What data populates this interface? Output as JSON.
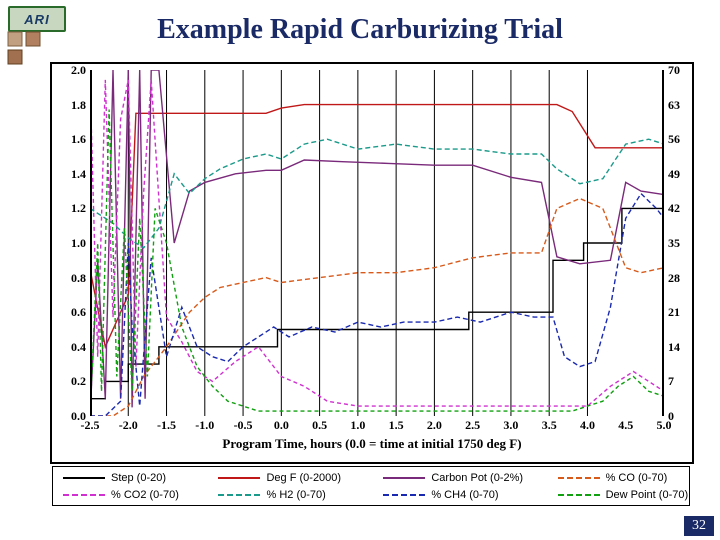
{
  "logo_text": "ARI",
  "title": "Example Rapid Carburizing Trial",
  "page_number": "32",
  "chart": {
    "type": "line",
    "xlabel": "Program Time, hours (0.0 = time at initial 1750 deg F)",
    "xlim": [
      -2.5,
      5.0
    ],
    "xtick_step": 0.5,
    "y_left_lim": [
      0.0,
      2.0
    ],
    "y_left_step": 0.2,
    "y_right_lim": [
      0,
      70
    ],
    "y_right_step": 7,
    "xticks": [
      "-2.5",
      "-2.0",
      "-1.5",
      "-1.0",
      "-0.5",
      "0.0",
      "0.5",
      "1.0",
      "1.5",
      "2.0",
      "2.5",
      "3.0",
      "3.5",
      "4.0",
      "4.5",
      "5.0"
    ],
    "yticks_left": [
      "0.0",
      "0.2",
      "0.4",
      "0.6",
      "0.8",
      "1.0",
      "1.2",
      "1.4",
      "1.6",
      "1.8",
      "2.0"
    ],
    "yticks_right": [
      "0",
      "7",
      "14",
      "21",
      "28",
      "35",
      "42",
      "49",
      "56",
      "63",
      "70"
    ],
    "grid_vertical_at": [
      -2.0,
      -1.5,
      -1.0,
      -0.5,
      0.0,
      0.5,
      1.0,
      1.5,
      2.0,
      2.5,
      3.0,
      3.5,
      4.0
    ],
    "background_color": "#ffffff",
    "axis_color": "#000000",
    "label_fontsize": 13,
    "tick_fontsize": 12,
    "line_width": 1.4,
    "legend": [
      {
        "label": "Step (0-20)",
        "color": "#000000",
        "dash": "solid"
      },
      {
        "label": "Deg F (0-2000)",
        "color": "#c01818",
        "dash": "solid"
      },
      {
        "label": "Carbon Pot (0-2%)",
        "color": "#7a2a7a",
        "dash": "solid"
      },
      {
        "label": "% CO (0-70)",
        "color": "#d85a1a",
        "dash": "dashed"
      },
      {
        "label": "% CO2 (0-70)",
        "color": "#d030d0",
        "dash": "dashed"
      },
      {
        "label": "% H2 (0-70)",
        "color": "#1a9a8a",
        "dash": "dashed"
      },
      {
        "label": "% CH4 (0-70)",
        "color": "#1a2ab0",
        "dash": "dashed"
      },
      {
        "label": "Dew Point (0-70)",
        "color": "#10a010",
        "dash": "dashed"
      }
    ],
    "series": {
      "step": {
        "color": "#000000",
        "dash": "none",
        "axis": "left",
        "pts": [
          [
            -2.5,
            0.1
          ],
          [
            -2.3,
            0.1
          ],
          [
            -2.3,
            0.2
          ],
          [
            -2.0,
            0.2
          ],
          [
            -2.0,
            0.3
          ],
          [
            -1.6,
            0.3
          ],
          [
            -1.6,
            0.4
          ],
          [
            -0.05,
            0.4
          ],
          [
            -0.05,
            0.5
          ],
          [
            2.45,
            0.5
          ],
          [
            2.45,
            0.6
          ],
          [
            3.55,
            0.6
          ],
          [
            3.55,
            0.9
          ],
          [
            3.95,
            0.9
          ],
          [
            3.95,
            1.0
          ],
          [
            4.45,
            1.0
          ],
          [
            4.45,
            1.2
          ],
          [
            5.0,
            1.2
          ]
        ]
      },
      "degf": {
        "color": "#c01818",
        "dash": "none",
        "axis": "left",
        "pts": [
          [
            -2.5,
            0.85
          ],
          [
            -2.3,
            0.4
          ],
          [
            -2.0,
            0.7
          ],
          [
            -1.9,
            1.75
          ],
          [
            -1.7,
            1.75
          ],
          [
            -1.6,
            1.75
          ],
          [
            -0.2,
            1.75
          ],
          [
            0.0,
            1.78
          ],
          [
            0.3,
            1.8
          ],
          [
            3.6,
            1.8
          ],
          [
            3.8,
            1.76
          ],
          [
            4.1,
            1.55
          ],
          [
            4.5,
            1.55
          ],
          [
            5.0,
            1.55
          ]
        ]
      },
      "carbon": {
        "color": "#7a2a7a",
        "dash": "none",
        "axis": "left",
        "pts": [
          [
            -2.5,
            0.0
          ],
          [
            -2.4,
            0.9
          ],
          [
            -2.3,
            0.1
          ],
          [
            -2.2,
            2.0
          ],
          [
            -2.1,
            0.1
          ],
          [
            -2.0,
            2.0
          ],
          [
            -1.95,
            0.05
          ],
          [
            -1.85,
            2.0
          ],
          [
            -1.78,
            0.1
          ],
          [
            -1.7,
            2.0
          ],
          [
            -1.6,
            2.0
          ],
          [
            -1.4,
            1.0
          ],
          [
            -1.2,
            1.3
          ],
          [
            -1.0,
            1.35
          ],
          [
            -0.6,
            1.4
          ],
          [
            -0.2,
            1.42
          ],
          [
            0.0,
            1.42
          ],
          [
            0.3,
            1.48
          ],
          [
            0.8,
            1.47
          ],
          [
            1.4,
            1.46
          ],
          [
            2.0,
            1.45
          ],
          [
            2.5,
            1.45
          ],
          [
            3.0,
            1.38
          ],
          [
            3.4,
            1.35
          ],
          [
            3.6,
            0.92
          ],
          [
            3.9,
            0.88
          ],
          [
            4.3,
            0.9
          ],
          [
            4.5,
            1.35
          ],
          [
            4.7,
            1.3
          ],
          [
            5.0,
            1.28
          ]
        ]
      },
      "co": {
        "color": "#d85a1a",
        "dash": "5,3",
        "axis": "right",
        "pts": [
          [
            -2.5,
            0
          ],
          [
            -2.2,
            0
          ],
          [
            -2.0,
            2
          ],
          [
            -1.8,
            8
          ],
          [
            -1.5,
            14
          ],
          [
            -1.2,
            21
          ],
          [
            -1.0,
            24
          ],
          [
            -0.8,
            26
          ],
          [
            -0.5,
            27
          ],
          [
            -0.2,
            28
          ],
          [
            0.0,
            27
          ],
          [
            0.5,
            28
          ],
          [
            1.0,
            29
          ],
          [
            1.5,
            29
          ],
          [
            2.0,
            30
          ],
          [
            2.5,
            32
          ],
          [
            3.0,
            33
          ],
          [
            3.4,
            33
          ],
          [
            3.6,
            42
          ],
          [
            3.9,
            44
          ],
          [
            4.2,
            42
          ],
          [
            4.5,
            30
          ],
          [
            4.7,
            29
          ],
          [
            5.0,
            30
          ]
        ]
      },
      "co2": {
        "color": "#d030d0",
        "dash": "4,3",
        "axis": "right",
        "pts": [
          [
            -2.5,
            68
          ],
          [
            -2.4,
            12
          ],
          [
            -2.3,
            68
          ],
          [
            -2.2,
            20
          ],
          [
            -2.1,
            60
          ],
          [
            -2.0,
            68
          ],
          [
            -1.9,
            10
          ],
          [
            -1.8,
            45
          ],
          [
            -1.7,
            68
          ],
          [
            -1.5,
            20
          ],
          [
            -1.3,
            15
          ],
          [
            -1.1,
            9
          ],
          [
            -0.9,
            7
          ],
          [
            -0.6,
            11
          ],
          [
            -0.3,
            14
          ],
          [
            0.0,
            8
          ],
          [
            0.3,
            6
          ],
          [
            0.6,
            3
          ],
          [
            1.0,
            2
          ],
          [
            1.5,
            2
          ],
          [
            2.0,
            2
          ],
          [
            2.5,
            2
          ],
          [
            3.0,
            2
          ],
          [
            3.5,
            2
          ],
          [
            3.7,
            2
          ],
          [
            4.0,
            2
          ],
          [
            4.3,
            6
          ],
          [
            4.6,
            9
          ],
          [
            5.0,
            5
          ]
        ]
      },
      "h2": {
        "color": "#1a9a8a",
        "dash": "5,3",
        "axis": "right",
        "pts": [
          [
            -2.5,
            42
          ],
          [
            -2.2,
            39
          ],
          [
            -2.0,
            36
          ],
          [
            -1.8,
            34
          ],
          [
            -1.6,
            38
          ],
          [
            -1.4,
            49
          ],
          [
            -1.2,
            45
          ],
          [
            -1.0,
            48
          ],
          [
            -0.8,
            50
          ],
          [
            -0.5,
            52
          ],
          [
            -0.2,
            53
          ],
          [
            0.0,
            52
          ],
          [
            0.3,
            55
          ],
          [
            0.6,
            56
          ],
          [
            1.0,
            54
          ],
          [
            1.5,
            55
          ],
          [
            2.0,
            54
          ],
          [
            2.5,
            54
          ],
          [
            3.0,
            53
          ],
          [
            3.4,
            53
          ],
          [
            3.6,
            50
          ],
          [
            3.9,
            47
          ],
          [
            4.2,
            48
          ],
          [
            4.5,
            55
          ],
          [
            4.8,
            56
          ],
          [
            5.0,
            55
          ]
        ]
      },
      "ch4": {
        "color": "#1a2ab0",
        "dash": "5,3",
        "axis": "right",
        "pts": [
          [
            -2.5,
            0
          ],
          [
            -2.3,
            0
          ],
          [
            -2.1,
            3
          ],
          [
            -2.0,
            35
          ],
          [
            -1.95,
            18
          ],
          [
            -1.85,
            2
          ],
          [
            -1.7,
            32
          ],
          [
            -1.5,
            12
          ],
          [
            -1.3,
            22
          ],
          [
            -1.1,
            14
          ],
          [
            -0.9,
            12
          ],
          [
            -0.7,
            11
          ],
          [
            -0.5,
            14
          ],
          [
            -0.3,
            16
          ],
          [
            -0.1,
            18
          ],
          [
            0.1,
            16
          ],
          [
            0.4,
            18
          ],
          [
            0.7,
            17
          ],
          [
            1.0,
            19
          ],
          [
            1.3,
            18
          ],
          [
            1.6,
            19
          ],
          [
            2.0,
            19
          ],
          [
            2.3,
            20
          ],
          [
            2.6,
            19
          ],
          [
            3.0,
            21
          ],
          [
            3.3,
            20
          ],
          [
            3.55,
            20
          ],
          [
            3.7,
            12
          ],
          [
            3.9,
            10
          ],
          [
            4.1,
            11
          ],
          [
            4.3,
            22
          ],
          [
            4.5,
            40
          ],
          [
            4.7,
            45
          ],
          [
            4.9,
            42
          ],
          [
            5.0,
            40
          ]
        ]
      },
      "dew": {
        "color": "#10a010",
        "dash": "4,3",
        "axis": "right",
        "pts": [
          [
            -2.5,
            0
          ],
          [
            -2.4,
            35
          ],
          [
            -2.35,
            5
          ],
          [
            -2.25,
            62
          ],
          [
            -2.15,
            8
          ],
          [
            -2.05,
            38
          ],
          [
            -1.95,
            5
          ],
          [
            -1.85,
            40
          ],
          [
            -1.75,
            8
          ],
          [
            -1.65,
            42
          ],
          [
            -1.5,
            35
          ],
          [
            -1.3,
            18
          ],
          [
            -1.1,
            10
          ],
          [
            -0.9,
            6
          ],
          [
            -0.7,
            3
          ],
          [
            -0.5,
            2
          ],
          [
            -0.3,
            1
          ],
          [
            0.0,
            1
          ],
          [
            0.5,
            1
          ],
          [
            1.0,
            1
          ],
          [
            1.5,
            1
          ],
          [
            2.0,
            1
          ],
          [
            2.5,
            1
          ],
          [
            3.0,
            1
          ],
          [
            3.5,
            1
          ],
          [
            3.8,
            1
          ],
          [
            4.0,
            2
          ],
          [
            4.2,
            3
          ],
          [
            4.4,
            6
          ],
          [
            4.6,
            8
          ],
          [
            4.8,
            5
          ],
          [
            5.0,
            4
          ]
        ]
      }
    }
  }
}
